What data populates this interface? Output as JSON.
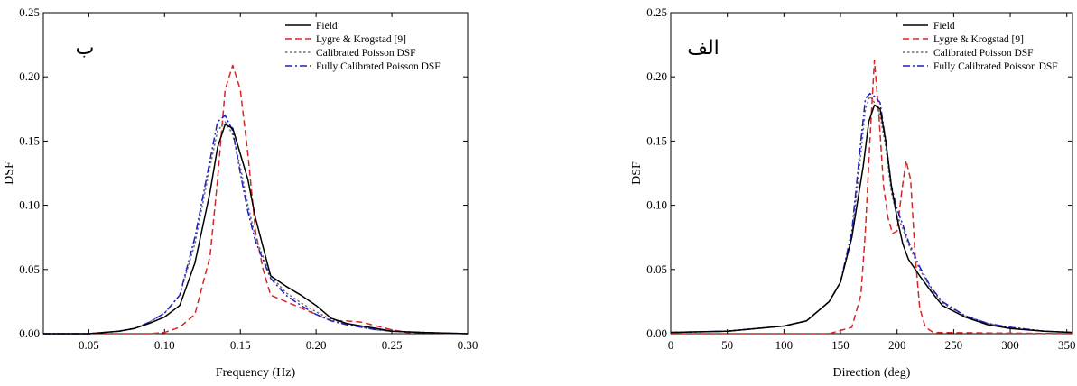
{
  "chart_data": [
    {
      "type": "line",
      "panel_label": "ب",
      "xlabel": "Frequency (Hz)",
      "ylabel": "DSF",
      "xlim": [
        0.02,
        0.3
      ],
      "ylim": [
        0,
        0.25
      ],
      "xticks": [
        "0.05",
        "0.10",
        "0.15",
        "0.20",
        "0.25",
        "0.30"
      ],
      "xtick_values": [
        0.05,
        0.1,
        0.15,
        0.2,
        0.25,
        0.3
      ],
      "yticks": [
        "0.00",
        "0.05",
        "0.10",
        "0.15",
        "0.20",
        "0.25"
      ],
      "ytick_values": [
        0,
        0.05,
        0.1,
        0.15,
        0.2,
        0.25
      ],
      "legend_position": "top-right",
      "series": [
        {
          "name": "Field",
          "color": "#000000",
          "dash": "solid",
          "points": [
            [
              0.02,
              0
            ],
            [
              0.05,
              0
            ],
            [
              0.06,
              0.001
            ],
            [
              0.07,
              0.002
            ],
            [
              0.08,
              0.004
            ],
            [
              0.09,
              0.008
            ],
            [
              0.1,
              0.013
            ],
            [
              0.11,
              0.022
            ],
            [
              0.12,
              0.055
            ],
            [
              0.13,
              0.11
            ],
            [
              0.135,
              0.145
            ],
            [
              0.14,
              0.163
            ],
            [
              0.145,
              0.16
            ],
            [
              0.15,
              0.14
            ],
            [
              0.155,
              0.12
            ],
            [
              0.16,
              0.09
            ],
            [
              0.17,
              0.045
            ],
            [
              0.18,
              0.037
            ],
            [
              0.19,
              0.03
            ],
            [
              0.2,
              0.022
            ],
            [
              0.21,
              0.012
            ],
            [
              0.22,
              0.008
            ],
            [
              0.23,
              0.006
            ],
            [
              0.24,
              0.004
            ],
            [
              0.25,
              0.002
            ],
            [
              0.27,
              0.001
            ],
            [
              0.3,
              0
            ]
          ]
        },
        {
          "name": "Lygre & Krogstad [9]",
          "color": "#d62728",
          "dash": "dashed",
          "points": [
            [
              0.02,
              0
            ],
            [
              0.09,
              0
            ],
            [
              0.1,
              0.001
            ],
            [
              0.11,
              0.005
            ],
            [
              0.12,
              0.015
            ],
            [
              0.13,
              0.06
            ],
            [
              0.135,
              0.12
            ],
            [
              0.14,
              0.19
            ],
            [
              0.145,
              0.209
            ],
            [
              0.15,
              0.19
            ],
            [
              0.155,
              0.14
            ],
            [
              0.16,
              0.08
            ],
            [
              0.165,
              0.05
            ],
            [
              0.17,
              0.03
            ],
            [
              0.18,
              0.025
            ],
            [
              0.19,
              0.02
            ],
            [
              0.2,
              0.015
            ],
            [
              0.21,
              0.01
            ],
            [
              0.22,
              0.01
            ],
            [
              0.23,
              0.009
            ],
            [
              0.24,
              0.006
            ],
            [
              0.25,
              0.003
            ],
            [
              0.26,
              0.001
            ],
            [
              0.3,
              0
            ]
          ]
        },
        {
          "name": "Calibrated Poisson DSF",
          "color": "#707070",
          "dash": "dotted",
          "points": [
            [
              0.02,
              0
            ],
            [
              0.05,
              0
            ],
            [
              0.06,
              0.001
            ],
            [
              0.07,
              0.002
            ],
            [
              0.08,
              0.004
            ],
            [
              0.09,
              0.009
            ],
            [
              0.1,
              0.016
            ],
            [
              0.11,
              0.03
            ],
            [
              0.12,
              0.07
            ],
            [
              0.13,
              0.13
            ],
            [
              0.135,
              0.158
            ],
            [
              0.14,
              0.165
            ],
            [
              0.145,
              0.155
            ],
            [
              0.15,
              0.13
            ],
            [
              0.155,
              0.1
            ],
            [
              0.16,
              0.075
            ],
            [
              0.17,
              0.045
            ],
            [
              0.18,
              0.032
            ],
            [
              0.19,
              0.024
            ],
            [
              0.2,
              0.017
            ],
            [
              0.21,
              0.011
            ],
            [
              0.22,
              0.008
            ],
            [
              0.23,
              0.005
            ],
            [
              0.24,
              0.003
            ],
            [
              0.25,
              0.002
            ],
            [
              0.27,
              0.001
            ],
            [
              0.3,
              0
            ]
          ]
        },
        {
          "name": "Fully Calibrated Poisson DSF",
          "color": "#1f1fbf",
          "dash": "dashdot",
          "points": [
            [
              0.02,
              0
            ],
            [
              0.05,
              0
            ],
            [
              0.06,
              0.001
            ],
            [
              0.07,
              0.002
            ],
            [
              0.08,
              0.004
            ],
            [
              0.09,
              0.009
            ],
            [
              0.1,
              0.016
            ],
            [
              0.11,
              0.03
            ],
            [
              0.12,
              0.075
            ],
            [
              0.13,
              0.135
            ],
            [
              0.135,
              0.165
            ],
            [
              0.14,
              0.17
            ],
            [
              0.145,
              0.158
            ],
            [
              0.15,
              0.125
            ],
            [
              0.155,
              0.095
            ],
            [
              0.16,
              0.072
            ],
            [
              0.17,
              0.043
            ],
            [
              0.18,
              0.03
            ],
            [
              0.19,
              0.022
            ],
            [
              0.2,
              0.015
            ],
            [
              0.21,
              0.01
            ],
            [
              0.22,
              0.007
            ],
            [
              0.23,
              0.005
            ],
            [
              0.24,
              0.003
            ],
            [
              0.25,
              0.002
            ],
            [
              0.27,
              0.001
            ],
            [
              0.3,
              0
            ]
          ]
        }
      ]
    },
    {
      "type": "line",
      "panel_label": "الف",
      "xlabel": "Direction (deg)",
      "ylabel": "DSF",
      "xlim": [
        0,
        355
      ],
      "ylim": [
        0,
        0.25
      ],
      "xticks": [
        "0",
        "50",
        "100",
        "150",
        "200",
        "250",
        "300",
        "350"
      ],
      "xtick_values": [
        0,
        50,
        100,
        150,
        200,
        250,
        300,
        350
      ],
      "yticks": [
        "0.00",
        "0.05",
        "0.10",
        "0.15",
        "0.20",
        "0.25"
      ],
      "ytick_values": [
        0,
        0.05,
        0.1,
        0.15,
        0.2,
        0.25
      ],
      "legend_position": "top-right",
      "series": [
        {
          "name": "Field",
          "color": "#000000",
          "dash": "solid",
          "points": [
            [
              0,
              0.001
            ],
            [
              50,
              0.002
            ],
            [
              100,
              0.006
            ],
            [
              120,
              0.01
            ],
            [
              140,
              0.025
            ],
            [
              150,
              0.04
            ],
            [
              160,
              0.075
            ],
            [
              170,
              0.13
            ],
            [
              175,
              0.165
            ],
            [
              180,
              0.178
            ],
            [
              185,
              0.175
            ],
            [
              190,
              0.15
            ],
            [
              195,
              0.115
            ],
            [
              200,
              0.09
            ],
            [
              205,
              0.07
            ],
            [
              210,
              0.058
            ],
            [
              220,
              0.045
            ],
            [
              230,
              0.033
            ],
            [
              240,
              0.022
            ],
            [
              260,
              0.013
            ],
            [
              280,
              0.007
            ],
            [
              300,
              0.004
            ],
            [
              330,
              0.002
            ],
            [
              355,
              0.001
            ]
          ]
        },
        {
          "name": "Lygre & Krogstad [9]",
          "color": "#d62728",
          "dash": "dashed",
          "points": [
            [
              0,
              0
            ],
            [
              140,
              0
            ],
            [
              160,
              0.005
            ],
            [
              168,
              0.03
            ],
            [
              172,
              0.08
            ],
            [
              176,
              0.15
            ],
            [
              180,
              0.213
            ],
            [
              184,
              0.17
            ],
            [
              188,
              0.115
            ],
            [
              192,
              0.09
            ],
            [
              196,
              0.078
            ],
            [
              200,
              0.08
            ],
            [
              204,
              0.11
            ],
            [
              208,
              0.135
            ],
            [
              212,
              0.12
            ],
            [
              216,
              0.06
            ],
            [
              220,
              0.02
            ],
            [
              225,
              0.005
            ],
            [
              232,
              0.001
            ],
            [
              355,
              0
            ]
          ]
        },
        {
          "name": "Calibrated Poisson DSF",
          "color": "#707070",
          "dash": "dotted",
          "points": [
            [
              0,
              0.001
            ],
            [
              50,
              0.002
            ],
            [
              100,
              0.006
            ],
            [
              120,
              0.01
            ],
            [
              140,
              0.025
            ],
            [
              150,
              0.04
            ],
            [
              160,
              0.075
            ],
            [
              168,
              0.14
            ],
            [
              172,
              0.175
            ],
            [
              176,
              0.185
            ],
            [
              180,
              0.18
            ],
            [
              185,
              0.17
            ],
            [
              190,
              0.145
            ],
            [
              195,
              0.11
            ],
            [
              200,
              0.092
            ],
            [
              205,
              0.082
            ],
            [
              210,
              0.07
            ],
            [
              220,
              0.05
            ],
            [
              230,
              0.035
            ],
            [
              240,
              0.024
            ],
            [
              260,
              0.014
            ],
            [
              280,
              0.008
            ],
            [
              300,
              0.005
            ],
            [
              330,
              0.002
            ],
            [
              355,
              0.001
            ]
          ]
        },
        {
          "name": "Fully Calibrated Poisson DSF",
          "color": "#1f1fbf",
          "dash": "dashdot",
          "points": [
            [
              0,
              0.001
            ],
            [
              50,
              0.002
            ],
            [
              100,
              0.006
            ],
            [
              120,
              0.01
            ],
            [
              140,
              0.025
            ],
            [
              150,
              0.04
            ],
            [
              160,
              0.08
            ],
            [
              168,
              0.15
            ],
            [
              172,
              0.183
            ],
            [
              176,
              0.187
            ],
            [
              180,
              0.185
            ],
            [
              185,
              0.18
            ],
            [
              190,
              0.15
            ],
            [
              195,
              0.115
            ],
            [
              200,
              0.097
            ],
            [
              205,
              0.085
            ],
            [
              210,
              0.072
            ],
            [
              220,
              0.052
            ],
            [
              230,
              0.036
            ],
            [
              240,
              0.025
            ],
            [
              260,
              0.014
            ],
            [
              280,
              0.008
            ],
            [
              300,
              0.005
            ],
            [
              330,
              0.002
            ],
            [
              355,
              0.001
            ]
          ]
        }
      ]
    }
  ]
}
